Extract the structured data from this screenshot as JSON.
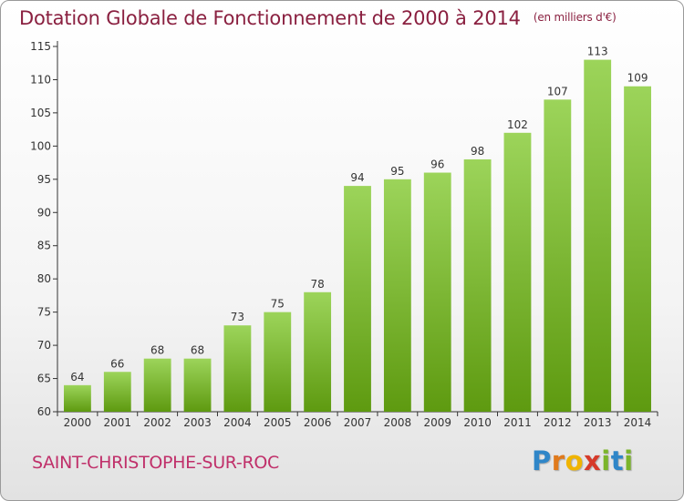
{
  "title": "Dotation Globale de Fonctionnement de 2000 à 2014",
  "unit_note": "(en milliers d'€)",
  "commune": "SAINT-CHRISTOPHE-SUR-ROC",
  "logo": {
    "letters": [
      {
        "char": "P",
        "color": "#2f86c8"
      },
      {
        "char": "r",
        "color": "#e07a1c"
      },
      {
        "char": "o",
        "color": "#f0b400"
      },
      {
        "char": "x",
        "color": "#d63a2a"
      },
      {
        "char": "i",
        "color": "#7bb52a"
      },
      {
        "char": "t",
        "color": "#2f86c8"
      },
      {
        "char": "i",
        "color": "#7bb52a"
      }
    ]
  },
  "chart_data": {
    "type": "bar",
    "categories": [
      "2000",
      "2001",
      "2002",
      "2003",
      "2004",
      "2005",
      "2006",
      "2007",
      "2008",
      "2009",
      "2010",
      "2011",
      "2012",
      "2013",
      "2014"
    ],
    "values": [
      64,
      66,
      68,
      68,
      73,
      75,
      78,
      94,
      95,
      96,
      98,
      102,
      107,
      113,
      109
    ],
    "ylim": [
      60,
      115
    ],
    "yticks": [
      "60",
      "65",
      "70",
      "75",
      "80",
      "85",
      "90",
      "95",
      "100",
      "105",
      "110",
      "115"
    ],
    "grid": false,
    "colors": {
      "bar_top": "#9cd45a",
      "bar_bottom": "#5e9a10",
      "axis": "#333333",
      "title": "#8a2040",
      "commune": "#c0306a"
    }
  }
}
